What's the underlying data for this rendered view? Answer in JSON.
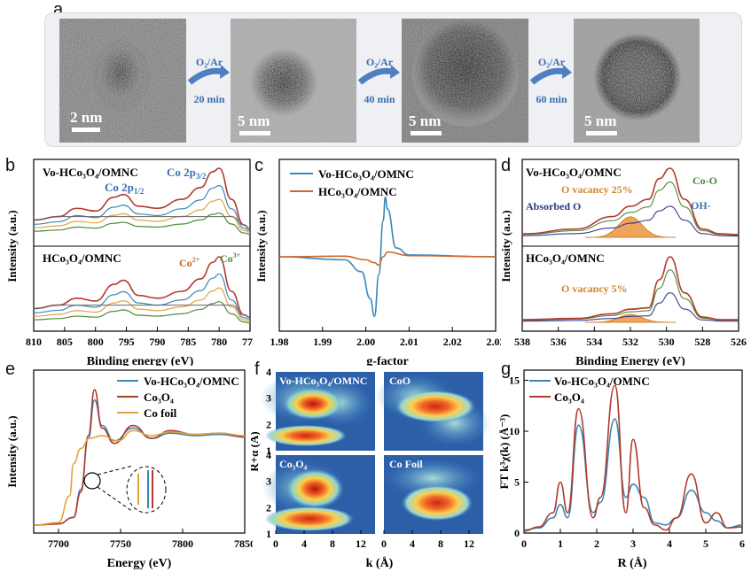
{
  "panel_labels": {
    "a": "a",
    "b": "b",
    "c": "c",
    "d": "d",
    "e": "e",
    "f": "f",
    "g": "g"
  },
  "panel_a": {
    "images": [
      {
        "scale": "2 nm"
      },
      {
        "scale": "5 nm"
      },
      {
        "scale": "5 nm"
      },
      {
        "scale": "5 nm"
      }
    ],
    "arrows": [
      {
        "gas": "O₂/Ar",
        "time": "20 min"
      },
      {
        "gas": "O₂/Ar",
        "time": "40 min"
      },
      {
        "gas": "O₂/Ar",
        "time": "60 min"
      }
    ]
  },
  "chart_data": [
    {
      "panel": "b",
      "type": "line",
      "xlabel": "Binding energy (eV)",
      "ylabel": "Intensity (a.u.)",
      "xlim": [
        810,
        775
      ],
      "xticks": [
        810,
        805,
        800,
        795,
        790,
        785,
        780,
        775
      ],
      "top": {
        "sample": "Vo-HCo₃O₄/OMNC",
        "annotations": [
          "Co 2p3/2",
          "Co 2p1/2"
        ],
        "x": [
          810,
          806,
          803,
          800,
          797,
          795.5,
          793,
          790,
          786,
          783,
          781,
          780,
          778,
          776,
          775
        ],
        "y": [
          0.25,
          0.3,
          0.42,
          0.38,
          0.58,
          0.62,
          0.45,
          0.42,
          0.55,
          0.72,
          0.95,
          1.0,
          0.55,
          0.18,
          0.12
        ]
      },
      "bottom": {
        "sample": "HCo₃O₄/OMNC",
        "annotations": [
          "Co2+",
          "Co3+"
        ],
        "x": [
          810,
          806,
          803,
          800,
          797,
          795.5,
          793,
          790,
          786,
          783,
          781,
          780,
          778,
          776,
          775
        ],
        "y": [
          0.25,
          0.3,
          0.4,
          0.36,
          0.6,
          0.66,
          0.44,
          0.4,
          0.5,
          0.68,
          0.92,
          1.0,
          0.5,
          0.16,
          0.12
        ]
      }
    },
    {
      "panel": "c",
      "type": "line",
      "xlabel": "g-factor",
      "ylabel": "Intensity (a.u.)",
      "xlim": [
        1.98,
        2.03
      ],
      "xticks": [
        "1.98",
        "1.99",
        "2.00",
        "2.01",
        "2.02",
        "2.03"
      ],
      "series": [
        {
          "name": "Vo-HCo₃O₄/OMNC",
          "color": "#3a87b8",
          "x": [
            1.98,
            1.995,
            1.999,
            2.001,
            2.002,
            2.003,
            2.004,
            2.0045,
            2.005,
            2.007,
            2.01,
            2.03
          ],
          "y": [
            0,
            -0.05,
            -0.25,
            -0.7,
            -1.0,
            -0.3,
            0.6,
            1.0,
            0.8,
            0.15,
            0.03,
            0
          ]
        },
        {
          "name": "HCo₃O₄/OMNC",
          "color": "#d2642c",
          "x": [
            1.98,
            1.995,
            2.0,
            2.002,
            2.003,
            2.004,
            2.005,
            2.01,
            2.03
          ],
          "y": [
            0,
            0.01,
            -0.05,
            -0.1,
            -0.14,
            0.0,
            0.08,
            0.02,
            0
          ]
        }
      ]
    },
    {
      "panel": "d",
      "type": "line",
      "xlabel": "Binding Energy (eV)",
      "ylabel": "Intensity (a.u.)",
      "xlim": [
        538,
        526
      ],
      "xticks": [
        538,
        536,
        534,
        532,
        530,
        528,
        526
      ],
      "top": {
        "sample": "Vo-HCo₃O₄/OMNC",
        "annotations": [
          "Co-O",
          "O vacancy 25%",
          "OH-",
          "Absorbed O"
        ],
        "x": [
          538,
          535,
          533,
          532,
          531,
          530.4,
          529.8,
          529,
          528,
          527,
          526
        ],
        "y": [
          0.05,
          0.12,
          0.3,
          0.45,
          0.55,
          0.85,
          1.0,
          0.55,
          0.12,
          0.05,
          0.04
        ]
      },
      "bottom": {
        "sample": "HCo₃O₄/OMNC",
        "annotations": [
          "O vacancy 5%"
        ],
        "x": [
          538,
          535,
          533,
          532,
          531,
          530.4,
          529.8,
          529,
          528,
          527,
          526
        ],
        "y": [
          0.04,
          0.06,
          0.13,
          0.2,
          0.22,
          0.65,
          1.0,
          0.45,
          0.08,
          0.04,
          0.04
        ]
      }
    },
    {
      "panel": "e",
      "type": "line",
      "xlabel": "Energy (eV)",
      "ylabel": "Intensity (a.u.)",
      "xlim": [
        7680,
        7850
      ],
      "xticks": [
        7700,
        7750,
        7800,
        7850
      ],
      "series": [
        {
          "name": "Vo-HCo₃O₄/OMNC",
          "color": "#3a87b8",
          "x": [
            7680,
            7700,
            7712,
            7718,
            7724,
            7729,
            7735,
            7745,
            7760,
            7775,
            7790,
            7810,
            7830,
            7850
          ],
          "y": [
            0.02,
            0.03,
            0.08,
            0.3,
            0.7,
            1.0,
            0.8,
            0.68,
            0.78,
            0.7,
            0.74,
            0.72,
            0.73,
            0.71
          ]
        },
        {
          "name": "Co₃O₄",
          "color": "#b13a2e",
          "x": [
            7680,
            7700,
            7712,
            7718,
            7724,
            7729,
            7735,
            7745,
            7760,
            7775,
            7790,
            7810,
            7830,
            7850
          ],
          "y": [
            0.02,
            0.03,
            0.08,
            0.28,
            0.72,
            1.08,
            0.78,
            0.66,
            0.8,
            0.7,
            0.76,
            0.73,
            0.74,
            0.71
          ]
        },
        {
          "name": "Co foil",
          "color": "#e2a33a",
          "x": [
            7680,
            7700,
            7709,
            7712,
            7718,
            7725,
            7735,
            7748,
            7760,
            7775,
            7790,
            7810,
            7830,
            7850
          ],
          "y": [
            0.02,
            0.04,
            0.25,
            0.5,
            0.62,
            0.7,
            0.72,
            0.68,
            0.76,
            0.72,
            0.75,
            0.73,
            0.74,
            0.72
          ]
        }
      ]
    },
    {
      "panel": "f",
      "type": "heatmap",
      "xlabel": "k (Å)",
      "ylabel": "R+α (Å)",
      "xticks": [
        0,
        4,
        8,
        12
      ],
      "yticks": [
        1,
        2,
        3,
        4
      ],
      "maps": [
        {
          "name": "Vo-HCo₃O₄/OMNC"
        },
        {
          "name": "CoO"
        },
        {
          "name": "Co₃O₄"
        },
        {
          "name": "Co Foil"
        }
      ]
    },
    {
      "panel": "g",
      "type": "line",
      "xlabel": "R (Å)",
      "ylabel": "FT k³χ(k) (Å⁻³)",
      "xlim": [
        0,
        6
      ],
      "ylim": [
        0,
        16
      ],
      "xticks": [
        0,
        1,
        2,
        3,
        4,
        5,
        6
      ],
      "yticks": [
        0,
        5,
        10,
        15
      ],
      "series": [
        {
          "name": "Vo-HCo₃O₄/OMNC",
          "color": "#3a87b8",
          "x": [
            0,
            0.4,
            0.8,
            1.0,
            1.2,
            1.5,
            1.9,
            2.1,
            2.5,
            2.8,
            3.0,
            3.3,
            3.6,
            3.9,
            4.2,
            4.6,
            5.0,
            5.3,
            5.6,
            6.0
          ],
          "y": [
            0.3,
            0.5,
            1.5,
            2.8,
            1.5,
            10.6,
            2.0,
            3.0,
            11.2,
            3.5,
            4.8,
            3.5,
            1.0,
            0.8,
            1.5,
            4.2,
            2.0,
            1.2,
            0.5,
            0.8
          ]
        },
        {
          "name": "Co₃O₄",
          "color": "#b13a2e",
          "x": [
            0,
            0.4,
            0.8,
            1.0,
            1.2,
            1.5,
            1.9,
            2.1,
            2.5,
            2.8,
            3.0,
            3.3,
            3.6,
            3.9,
            4.2,
            4.6,
            5.0,
            5.3,
            5.6,
            6.0
          ],
          "y": [
            0.2,
            0.6,
            2.0,
            5.0,
            2.0,
            12.2,
            1.5,
            3.5,
            14.5,
            2.0,
            9.2,
            2.5,
            0.8,
            0.3,
            1.5,
            5.8,
            1.0,
            2.0,
            0.5,
            0.6
          ]
        }
      ]
    }
  ]
}
